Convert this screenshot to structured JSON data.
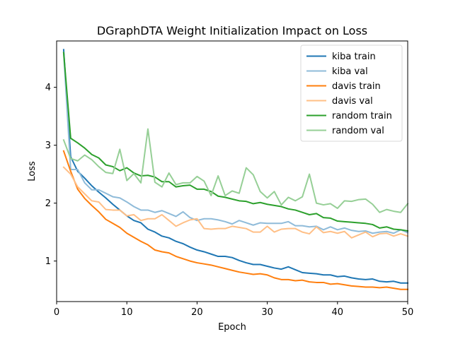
{
  "chart_data": {
    "type": "line",
    "title": "DGraphDTA Weight Initialization Impact on Loss",
    "xlabel": "Epoch",
    "ylabel": "Loss",
    "xlim": [
      0,
      50
    ],
    "ylim": [
      0.3,
      4.8
    ],
    "xticks": [
      "0",
      "10",
      "20",
      "30",
      "40",
      "50"
    ],
    "yticks": [
      "1",
      "2",
      "3",
      "4"
    ],
    "grid": false,
    "legend_position": "top-right",
    "x": [
      1,
      2,
      3,
      4,
      5,
      6,
      7,
      8,
      9,
      10,
      11,
      12,
      13,
      14,
      15,
      16,
      17,
      18,
      19,
      20,
      21,
      22,
      23,
      24,
      25,
      26,
      27,
      28,
      29,
      30,
      31,
      32,
      33,
      34,
      35,
      36,
      37,
      38,
      39,
      40,
      41,
      42,
      43,
      44,
      45,
      46,
      47,
      48,
      49,
      50
    ],
    "series": [
      {
        "name": "kiba train",
        "color": "#1f77b4",
        "width": 2,
        "values": [
          4.65,
          2.8,
          2.55,
          2.43,
          2.3,
          2.19,
          2.09,
          1.98,
          1.88,
          1.78,
          1.7,
          1.66,
          1.55,
          1.5,
          1.43,
          1.4,
          1.34,
          1.3,
          1.24,
          1.19,
          1.16,
          1.12,
          1.08,
          1.08,
          1.06,
          1.01,
          0.97,
          0.94,
          0.94,
          0.91,
          0.88,
          0.86,
          0.9,
          0.85,
          0.8,
          0.79,
          0.78,
          0.76,
          0.76,
          0.73,
          0.74,
          0.71,
          0.69,
          0.68,
          0.69,
          0.65,
          0.64,
          0.65,
          0.62,
          0.62
        ]
      },
      {
        "name": "kiba val",
        "color": "#8fbbd9",
        "width": 2,
        "values": [
          4.6,
          2.58,
          2.58,
          2.35,
          2.23,
          2.23,
          2.17,
          2.11,
          2.09,
          2.02,
          1.94,
          1.88,
          1.88,
          1.84,
          1.87,
          1.82,
          1.77,
          1.85,
          1.75,
          1.7,
          1.73,
          1.73,
          1.71,
          1.68,
          1.64,
          1.7,
          1.66,
          1.62,
          1.66,
          1.65,
          1.65,
          1.65,
          1.68,
          1.61,
          1.61,
          1.59,
          1.6,
          1.54,
          1.59,
          1.54,
          1.57,
          1.53,
          1.51,
          1.52,
          1.48,
          1.5,
          1.51,
          1.48,
          1.54,
          1.49
        ]
      },
      {
        "name": "davis train",
        "color": "#ff7f0e",
        "width": 2,
        "values": [
          2.9,
          2.55,
          2.24,
          2.08,
          1.96,
          1.85,
          1.72,
          1.65,
          1.58,
          1.48,
          1.41,
          1.34,
          1.28,
          1.19,
          1.16,
          1.14,
          1.08,
          1.04,
          1.0,
          0.97,
          0.95,
          0.93,
          0.9,
          0.87,
          0.84,
          0.81,
          0.79,
          0.77,
          0.78,
          0.76,
          0.71,
          0.68,
          0.68,
          0.66,
          0.67,
          0.64,
          0.63,
          0.63,
          0.6,
          0.61,
          0.59,
          0.57,
          0.56,
          0.55,
          0.55,
          0.54,
          0.55,
          0.53,
          0.51,
          0.51
        ]
      },
      {
        "name": "davis val",
        "color": "#ffbf86",
        "width": 2,
        "values": [
          2.62,
          2.5,
          2.28,
          2.16,
          2.04,
          2.02,
          1.89,
          1.88,
          1.88,
          1.78,
          1.8,
          1.7,
          1.73,
          1.73,
          1.8,
          1.7,
          1.6,
          1.66,
          1.71,
          1.73,
          1.56,
          1.55,
          1.56,
          1.56,
          1.6,
          1.58,
          1.56,
          1.5,
          1.5,
          1.6,
          1.5,
          1.55,
          1.56,
          1.56,
          1.5,
          1.47,
          1.59,
          1.49,
          1.51,
          1.48,
          1.51,
          1.4,
          1.45,
          1.5,
          1.42,
          1.47,
          1.48,
          1.43,
          1.47,
          1.43
        ]
      },
      {
        "name": "random train",
        "color": "#2ca02c",
        "width": 2,
        "values": [
          4.6,
          3.12,
          3.04,
          2.95,
          2.84,
          2.78,
          2.66,
          2.63,
          2.56,
          2.61,
          2.52,
          2.47,
          2.48,
          2.45,
          2.37,
          2.37,
          2.28,
          2.3,
          2.31,
          2.24,
          2.24,
          2.2,
          2.12,
          2.1,
          2.07,
          2.04,
          2.03,
          1.99,
          2.01,
          1.98,
          1.96,
          1.94,
          1.9,
          1.88,
          1.84,
          1.8,
          1.82,
          1.75,
          1.74,
          1.69,
          1.68,
          1.67,
          1.66,
          1.65,
          1.63,
          1.57,
          1.59,
          1.55,
          1.54,
          1.52
        ]
      },
      {
        "name": "random val",
        "color": "#96cf96",
        "width": 2,
        "values": [
          3.09,
          2.77,
          2.73,
          2.83,
          2.75,
          2.63,
          2.53,
          2.51,
          2.93,
          2.39,
          2.51,
          2.35,
          3.28,
          2.36,
          2.28,
          2.52,
          2.32,
          2.35,
          2.35,
          2.46,
          2.38,
          2.13,
          2.47,
          2.13,
          2.21,
          2.17,
          2.61,
          2.49,
          2.2,
          2.09,
          2.2,
          1.97,
          2.1,
          2.04,
          2.11,
          2.5,
          2.0,
          1.97,
          1.99,
          1.91,
          2.04,
          2.03,
          2.06,
          2.07,
          1.98,
          1.84,
          1.89,
          1.86,
          1.84,
          1.99
        ]
      }
    ]
  }
}
